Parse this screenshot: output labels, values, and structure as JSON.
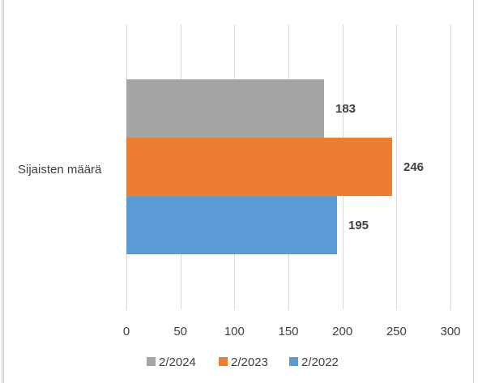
{
  "chart_data": {
    "type": "bar",
    "orientation": "horizontal",
    "categories": [
      "Sijaisten määrä"
    ],
    "series": [
      {
        "name": "2/2024",
        "values": [
          183
        ],
        "color": "#a5a5a5"
      },
      {
        "name": "2/2023",
        "values": [
          246
        ],
        "color": "#ed7d31"
      },
      {
        "name": "2/2022",
        "values": [
          195
        ],
        "color": "#5b9bd5"
      }
    ],
    "data_labels": [
      "183",
      "246",
      "195"
    ],
    "xlim": [
      0,
      300
    ],
    "xticks": [
      0,
      50,
      100,
      150,
      200,
      250,
      300
    ],
    "xtick_labels": [
      "0",
      "50",
      "100",
      "150",
      "200",
      "250",
      "300"
    ],
    "grid": true,
    "legend": "bottom",
    "title": "",
    "xlabel": "",
    "ylabel": ""
  }
}
